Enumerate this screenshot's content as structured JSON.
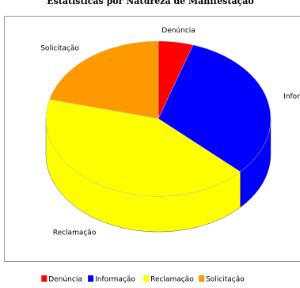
{
  "chart_data": {
    "type": "pie",
    "title": "Estatísticas por Natureza de Manifestação",
    "categories": [
      "Denúncia",
      "Informação",
      "Reclamação",
      "Solicitação"
    ],
    "values": [
      5,
      32,
      42,
      21
    ],
    "colors": [
      "#ff0000",
      "#0000ff",
      "#ffff00",
      "#ff9900"
    ],
    "legend": "bottom"
  }
}
